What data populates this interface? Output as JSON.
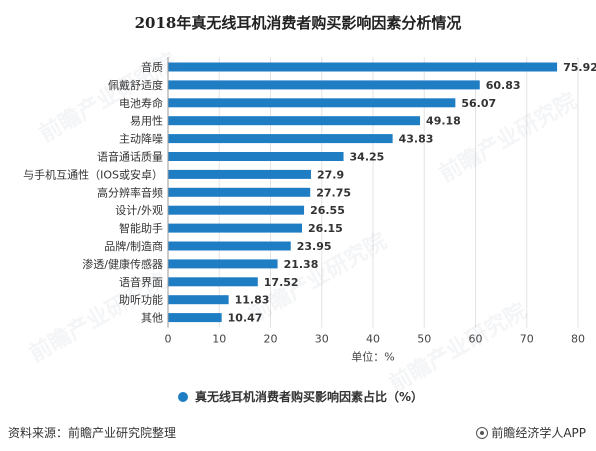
{
  "title": "2018年真无线耳机消费者购买影响因素分析情况",
  "chart_data": {
    "type": "bar",
    "orientation": "horizontal",
    "categories": [
      "音质",
      "佩戴舒适度",
      "电池寿命",
      "易用性",
      "主动降噪",
      "语音通话质量",
      "与手机互通性（IOS或安卓）",
      "高分辨率音频",
      "设计/外观",
      "智能助手",
      "品牌/制造商",
      "渗透/健康传感器",
      "语音界面",
      "助听功能",
      "其他"
    ],
    "series": [
      {
        "name": "真无线耳机消费者购买影响因素占比（%）",
        "values": [
          75.92,
          60.83,
          56.07,
          49.18,
          43.83,
          34.25,
          27.9,
          27.75,
          26.55,
          26.15,
          23.95,
          21.38,
          17.52,
          11.83,
          10.47
        ],
        "labels": [
          "75.92",
          "60.83",
          "56.07",
          "49.18",
          "43.83",
          "34.25",
          "27.9",
          "27.75",
          "26.55",
          "26.15",
          "23.95",
          "21.38",
          "17.52",
          "11.83",
          "10.47"
        ]
      }
    ],
    "xlim": [
      0,
      80
    ],
    "xticks": [
      "0",
      "10",
      "20",
      "30",
      "40",
      "50",
      "60",
      "70",
      "80"
    ],
    "xlabel": "单位：%",
    "legend_position": "bottom",
    "bar_color": "#1f7dc4"
  },
  "footer": {
    "source": "资料来源：前瞻产业研究院整理",
    "brand": "前瞻经济学人APP"
  },
  "watermark": "前瞻产业研究院"
}
